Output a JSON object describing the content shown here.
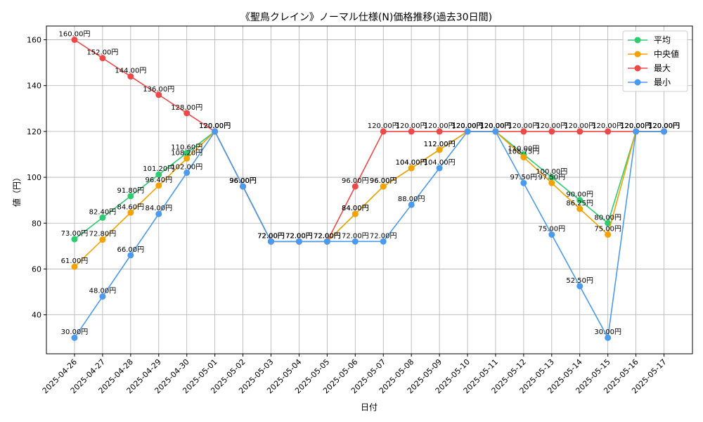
{
  "chart_data": {
    "type": "line",
    "title": "《聖鳥クレイン》ノーマル仕様(N)価格推移(過去30日間)",
    "xlabel": "日付",
    "ylabel": "値（円）",
    "ylim": [
      23,
      166
    ],
    "yticks": [
      40,
      60,
      80,
      100,
      120,
      140,
      160
    ],
    "grid": true,
    "legend_position": "top-right",
    "value_suffix": "円",
    "categories": [
      "2025-04-26",
      "2025-04-27",
      "2025-04-28",
      "2025-04-29",
      "2025-04-30",
      "2025-05-01",
      "2025-05-02",
      "2025-05-03",
      "2025-05-04",
      "2025-05-05",
      "2025-05-06",
      "2025-05-07",
      "2025-05-08",
      "2025-05-09",
      "2025-05-10",
      "2025-05-11",
      "2025-05-12",
      "2025-05-13",
      "2025-05-14",
      "2025-05-15",
      "2025-05-16",
      "2025-05-17"
    ],
    "series": [
      {
        "name": "平均",
        "color": "#2ecc71",
        "values": [
          73.0,
          82.4,
          91.8,
          101.2,
          110.6,
          120.0,
          96.0,
          72.0,
          72.0,
          72.0,
          84.0,
          96.0,
          104.0,
          112.0,
          120.0,
          120.0,
          110.0,
          100.0,
          90.0,
          80.0,
          120.0,
          120.0
        ]
      },
      {
        "name": "中央値",
        "color": "#f5a200",
        "values": [
          61.0,
          72.8,
          84.6,
          96.4,
          108.2,
          120.0,
          96.0,
          72.0,
          72.0,
          72.0,
          84.0,
          96.0,
          104.0,
          112.0,
          120.0,
          120.0,
          108.75,
          97.5,
          86.25,
          75.0,
          120.0,
          120.0
        ]
      },
      {
        "name": "最大",
        "color": "#f04848",
        "values": [
          160.0,
          152.0,
          144.0,
          136.0,
          128.0,
          120.0,
          96.0,
          72.0,
          72.0,
          72.0,
          96.0,
          120.0,
          120.0,
          120.0,
          120.0,
          120.0,
          120.0,
          120.0,
          120.0,
          120.0,
          120.0,
          120.0
        ]
      },
      {
        "name": "最小",
        "color": "#4a9af0",
        "values": [
          30.0,
          48.0,
          66.0,
          84.0,
          102.0,
          120.0,
          96.0,
          72.0,
          72.0,
          72.0,
          72.0,
          72.0,
          88.0,
          104.0,
          120.0,
          120.0,
          97.5,
          75.0,
          52.5,
          30.0,
          120.0,
          120.0
        ]
      }
    ]
  }
}
